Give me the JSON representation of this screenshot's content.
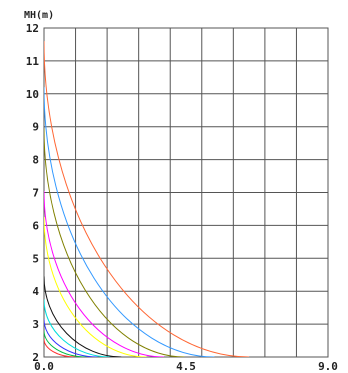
{
  "chart_data": {
    "type": "line",
    "title": "",
    "ylabel": "MH(m)",
    "xlabel": "",
    "xlim": [
      0,
      9
    ],
    "ylim": [
      12,
      2
    ],
    "y_inverted": true,
    "grid": true,
    "x_ticks": [
      {
        "value": 0,
        "label": "0.0"
      },
      {
        "value": 4.5,
        "label": "4.5"
      },
      {
        "value": 9,
        "label": "9.0"
      }
    ],
    "x_gridlines": [
      0,
      1,
      2,
      3,
      4,
      5,
      6,
      7,
      8,
      9
    ],
    "y_ticks": [
      {
        "value": 2,
        "label": "2"
      },
      {
        "value": 3,
        "label": "3"
      },
      {
        "value": 4,
        "label": "4"
      },
      {
        "value": 5,
        "label": "5"
      },
      {
        "value": 6,
        "label": "6"
      },
      {
        "value": 7,
        "label": "7"
      },
      {
        "value": 8,
        "label": "8"
      },
      {
        "value": 9,
        "label": "9"
      },
      {
        "value": 10,
        "label": "10"
      },
      {
        "value": 11,
        "label": "11"
      },
      {
        "value": 12,
        "label": "12"
      }
    ],
    "series": [
      {
        "color": "#ff3030",
        "center_y": 2.0,
        "radius_x": 1.0,
        "radius_y": 0.55
      },
      {
        "color": "#00bb44",
        "center_y": 2.0,
        "radius_x": 1.35,
        "radius_y": 0.8
      },
      {
        "color": "#3333ff",
        "center_y": 2.0,
        "radius_x": 1.7,
        "radius_y": 1.15
      },
      {
        "color": "#00dddd",
        "center_y": 2.0,
        "radius_x": 2.1,
        "radius_y": 1.75
      },
      {
        "color": "#111111",
        "center_y": 2.0,
        "radius_x": 2.45,
        "radius_y": 2.45
      },
      {
        "color": "#ffff00",
        "center_y": 2.0,
        "radius_x": 3.25,
        "radius_y": 4.25
      },
      {
        "color": "#ff00ff",
        "center_y": 2.0,
        "radius_x": 3.8,
        "radius_y": 5.05
      },
      {
        "color": "#808000",
        "center_y": 2.0,
        "radius_x": 4.45,
        "radius_y": 6.95
      },
      {
        "color": "#3399ff",
        "center_y": 2.0,
        "radius_x": 5.4,
        "radius_y": 8.2
      },
      {
        "color": "#ff6633",
        "center_y": 2.0,
        "radius_x": 6.5,
        "radius_y": 9.6
      }
    ]
  }
}
